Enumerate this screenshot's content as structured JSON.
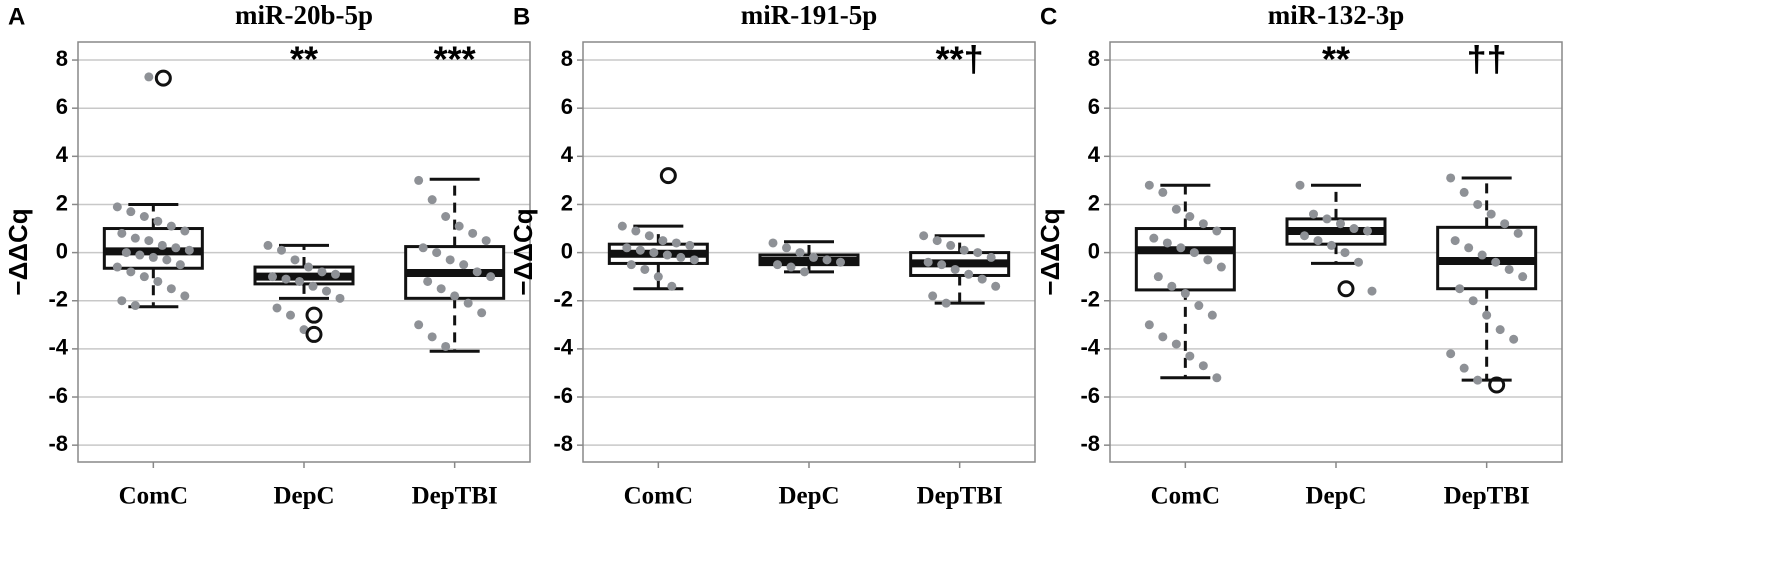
{
  "chart_data": [
    {
      "type": "box",
      "panel_label": "A",
      "title": "miR-20b-5p",
      "ylabel": "−ΔΔCq",
      "categories": [
        "ComC",
        "DepC",
        "DepTBI"
      ],
      "annotations": [
        null,
        "**",
        "***"
      ],
      "ylim": [
        -8.7,
        8.75
      ],
      "yticks": [
        -8,
        -6,
        -4,
        -2,
        0,
        2,
        4,
        6,
        8
      ],
      "grid": true,
      "point_color": "#8e9196",
      "box_color": "#111111",
      "boxes": [
        {
          "whisker_low": -2.25,
          "q1": -0.65,
          "median": 0.05,
          "q3": 1.0,
          "whisker_high": 2.0,
          "outliers": [
            7.25
          ],
          "points": [
            1.9,
            1.7,
            1.5,
            1.3,
            1.1,
            0.9,
            0.8,
            0.6,
            0.5,
            0.3,
            0.2,
            0.1,
            0,
            -0.1,
            -0.2,
            -0.3,
            -0.5,
            -0.6,
            -0.8,
            -1,
            -1.2,
            -1.5,
            -1.8,
            -2.0,
            -2.2,
            7.3
          ]
        },
        {
          "whisker_low": -1.9,
          "q1": -1.3,
          "median": -1.0,
          "q3": -0.6,
          "whisker_high": 0.3,
          "outliers": [
            -2.6,
            -3.4
          ],
          "points": [
            0.3,
            0.1,
            -0.3,
            -0.6,
            -0.8,
            -0.9,
            -1.0,
            -1.1,
            -1.2,
            -1.4,
            -1.6,
            -1.9,
            -2.3,
            -2.6,
            -3.2
          ]
        },
        {
          "whisker_low": -4.1,
          "q1": -1.9,
          "median": -0.85,
          "q3": 0.25,
          "whisker_high": 3.05,
          "outliers": [],
          "points": [
            3.0,
            2.2,
            1.5,
            1.1,
            0.8,
            0.5,
            0.2,
            0,
            -0.3,
            -0.5,
            -0.8,
            -1,
            -1.2,
            -1.5,
            -1.8,
            -2.1,
            -2.5,
            -3,
            -3.5,
            -3.9
          ]
        }
      ]
    },
    {
      "type": "box",
      "panel_label": "B",
      "title": "miR-191-5p",
      "ylabel": "−ΔΔCq",
      "categories": [
        "ComC",
        "DepC",
        "DepTBI"
      ],
      "annotations": [
        null,
        null,
        "**†"
      ],
      "ylim": [
        -8.7,
        8.75
      ],
      "yticks": [
        -8,
        -6,
        -4,
        -2,
        0,
        2,
        4,
        6,
        8
      ],
      "grid": true,
      "point_color": "#8e9196",
      "box_color": "#111111",
      "boxes": [
        {
          "whisker_low": -1.5,
          "q1": -0.45,
          "median": -0.05,
          "q3": 0.35,
          "whisker_high": 1.1,
          "outliers": [
            3.2
          ],
          "points": [
            1.1,
            0.9,
            0.7,
            0.5,
            0.4,
            0.3,
            0.2,
            0.1,
            0,
            -0.1,
            -0.2,
            -0.3,
            -0.5,
            -0.7,
            -1,
            -1.4
          ]
        },
        {
          "whisker_low": -0.8,
          "q1": -0.5,
          "median": -0.35,
          "q3": -0.1,
          "whisker_high": 0.45,
          "outliers": [],
          "points": [
            0.4,
            0.2,
            0,
            -0.2,
            -0.3,
            -0.4,
            -0.5,
            -0.6,
            -0.8
          ]
        },
        {
          "whisker_low": -2.1,
          "q1": -0.95,
          "median": -0.45,
          "q3": 0.0,
          "whisker_high": 0.7,
          "outliers": [],
          "points": [
            0.7,
            0.5,
            0.3,
            0.1,
            0,
            -0.2,
            -0.4,
            -0.5,
            -0.7,
            -0.9,
            -1.1,
            -1.4,
            -1.8,
            -2.1
          ]
        }
      ]
    },
    {
      "type": "box",
      "panel_label": "C",
      "title": "miR-132-3p",
      "ylabel": "−ΔΔCq",
      "categories": [
        "ComC",
        "DepC",
        "DepTBI"
      ],
      "annotations": [
        null,
        "**",
        "††"
      ],
      "ylim": [
        -8.7,
        8.75
      ],
      "yticks": [
        -8,
        -6,
        -4,
        -2,
        0,
        2,
        4,
        6,
        8
      ],
      "grid": true,
      "point_color": "#8e9196",
      "box_color": "#111111",
      "boxes": [
        {
          "whisker_low": -5.2,
          "q1": -1.55,
          "median": 0.1,
          "q3": 1.0,
          "whisker_high": 2.8,
          "outliers": [],
          "points": [
            2.8,
            2.5,
            1.8,
            1.5,
            1.2,
            0.9,
            0.6,
            0.4,
            0.2,
            0,
            -0.3,
            -0.6,
            -1,
            -1.4,
            -1.7,
            -2.2,
            -2.6,
            -3,
            -3.5,
            -3.8,
            -4.3,
            -4.7,
            -5.2
          ]
        },
        {
          "whisker_low": -0.45,
          "q1": 0.35,
          "median": 0.9,
          "q3": 1.4,
          "whisker_high": 2.8,
          "outliers": [
            -1.5
          ],
          "points": [
            2.8,
            1.6,
            1.4,
            1.2,
            1.0,
            0.9,
            0.7,
            0.5,
            0.3,
            0,
            -0.4,
            -1.6
          ]
        },
        {
          "whisker_low": -5.3,
          "q1": -1.5,
          "median": -0.35,
          "q3": 1.05,
          "whisker_high": 3.1,
          "outliers": [
            -5.5
          ],
          "points": [
            3.1,
            2.5,
            2.0,
            1.6,
            1.2,
            0.8,
            0.5,
            0.2,
            -0.1,
            -0.4,
            -0.7,
            -1,
            -1.5,
            -2,
            -2.6,
            -3.2,
            -3.6,
            -4.2,
            -4.8,
            -5.3
          ]
        }
      ]
    }
  ]
}
